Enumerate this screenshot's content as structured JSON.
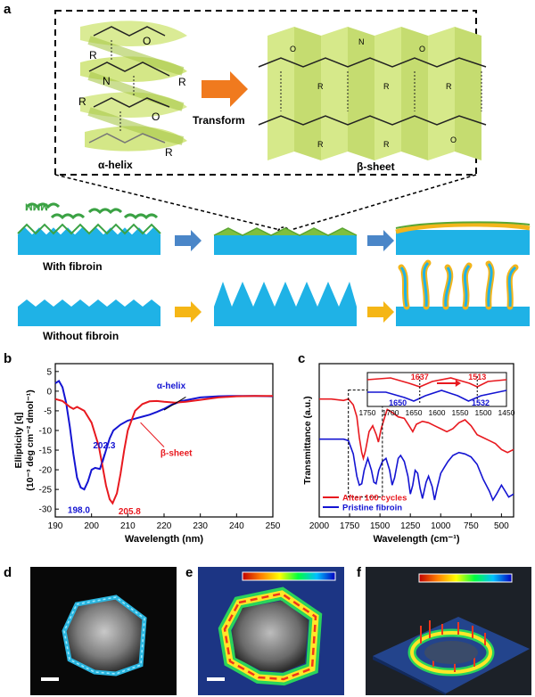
{
  "panels": {
    "a": {
      "label": "a",
      "alpha_helix": "α-helix",
      "beta_sheet": "β-sheet",
      "transform": "Transform",
      "with_fibroin": "With  fibroin",
      "without_fibroin": "Without fibroin"
    },
    "b": {
      "label": "b"
    },
    "c": {
      "label": "c"
    },
    "d": {
      "label": "d"
    },
    "e": {
      "label": "e"
    },
    "f": {
      "label": "f"
    }
  },
  "colors": {
    "red": "#e8191f",
    "blue": "#1414d2",
    "green_light": "#d6e98a",
    "substrate": "#1fb2e6",
    "arrow_blue": "#4a86c8",
    "arrow_yellow": "#f5b616",
    "arrow_orange": "#f07a1e",
    "coat_yellow": "#f2b51c"
  },
  "chart_data": [
    {
      "type": "line",
      "panel": "b",
      "xlabel": "Wavelength (nm)",
      "ylabel": "Ellipticity [q]",
      "ylabel2": "(10⁻³ deg cm⁻² dmol⁻¹)",
      "xlim": [
        190,
        250
      ],
      "ylim": [
        -32,
        7
      ],
      "x_ticks": [
        190,
        200,
        210,
        220,
        230,
        240,
        250
      ],
      "y_ticks": [
        5,
        0,
        -5,
        -10,
        -15,
        -20,
        -25,
        -30
      ],
      "series": [
        {
          "name": "α-helix",
          "color": "#1414d2",
          "x": [
            190,
            191,
            192,
            193,
            194,
            195,
            196,
            197,
            198,
            199,
            200,
            201,
            202.3,
            203,
            204,
            205,
            206,
            208,
            210,
            212,
            214,
            216,
            218,
            220,
            222,
            225,
            230,
            235,
            240,
            245,
            250
          ],
          "y": [
            2,
            2.6,
            1,
            -3,
            -9,
            -16,
            -22,
            -24.5,
            -25,
            -23,
            -20,
            -19.5,
            -19.8,
            -18,
            -15,
            -12,
            -10,
            -8.5,
            -7.5,
            -7,
            -6.5,
            -6,
            -5.3,
            -4.5,
            -3.5,
            -2.5,
            -1.6,
            -1.3,
            -1.2,
            -1.2,
            -1.3
          ]
        },
        {
          "name": "β-sheet",
          "color": "#e8191f",
          "x": [
            190,
            192,
            194,
            195,
            196,
            198,
            200,
            202,
            203,
            204,
            205,
            205.8,
            207,
            208,
            209,
            210,
            212,
            214,
            216,
            218,
            220,
            223,
            226,
            230,
            235,
            240,
            245,
            250
          ],
          "y": [
            -2,
            -2.5,
            -4,
            -4.5,
            -4,
            -5,
            -8,
            -14,
            -19,
            -24,
            -27.5,
            -28.5,
            -26,
            -21,
            -15,
            -10,
            -5,
            -3.3,
            -2.6,
            -2.5,
            -2.7,
            -2.9,
            -2.7,
            -2.2,
            -1.6,
            -1.3,
            -1.2,
            -1.2
          ]
        }
      ],
      "annotations": [
        "198.0",
        "202.3",
        "205.8",
        "α-helix",
        "β-sheet"
      ]
    },
    {
      "type": "line",
      "panel": "c",
      "xlabel": "Wavelength  (cm⁻¹)",
      "ylabel": "Transmittance  (a.u.)",
      "xlim": [
        2000,
        400
      ],
      "x_ticks": [
        2000,
        1750,
        1500,
        1250,
        1000,
        750,
        500
      ],
      "series": [
        {
          "name": "After  100  cycles",
          "color": "#e8191f",
          "x": [
            2000,
            1900,
            1800,
            1760,
            1720,
            1690,
            1670,
            1650,
            1637,
            1620,
            1590,
            1560,
            1530,
            1513,
            1490,
            1460,
            1440,
            1400,
            1350,
            1300,
            1260,
            1230,
            1200,
            1150,
            1100,
            1050,
            1000,
            950,
            900,
            850,
            800,
            750,
            700,
            650,
            600,
            550,
            500,
            450,
            400
          ],
          "y": [
            0.62,
            0.62,
            0.61,
            0.62,
            0.58,
            0.5,
            0.36,
            0.26,
            0.22,
            0.27,
            0.4,
            0.44,
            0.38,
            0.33,
            0.42,
            0.5,
            0.55,
            0.53,
            0.5,
            0.49,
            0.44,
            0.4,
            0.45,
            0.47,
            0.46,
            0.44,
            0.42,
            0.4,
            0.42,
            0.46,
            0.48,
            0.44,
            0.38,
            0.36,
            0.34,
            0.32,
            0.28,
            0.26,
            0.28
          ]
        },
        {
          "name": "Pristine  fibroin",
          "color": "#1414d2",
          "x": [
            2000,
            1900,
            1800,
            1760,
            1720,
            1690,
            1670,
            1650,
            1630,
            1600,
            1570,
            1550,
            1532,
            1510,
            1480,
            1450,
            1420,
            1400,
            1380,
            1350,
            1330,
            1300,
            1270,
            1250,
            1230,
            1210,
            1190,
            1170,
            1150,
            1120,
            1100,
            1070,
            1050,
            1030,
            1000,
            970,
            940,
            900,
            850,
            800,
            750,
            700,
            650,
            600,
            570,
            540,
            500,
            470,
            440,
            400
          ],
          "y": [
            0.35,
            0.35,
            0.35,
            0.34,
            0.25,
            0.1,
            0.04,
            0.05,
            0.14,
            0.22,
            0.14,
            0.06,
            0.05,
            0.14,
            0.2,
            0.22,
            0.14,
            0.04,
            0.09,
            0.22,
            0.24,
            0.2,
            0.1,
            -0.02,
            0.04,
            0.14,
            0.12,
            0.02,
            -0.05,
            0.06,
            0.1,
            0.03,
            -0.06,
            0.02,
            0.12,
            0.16,
            0.2,
            0.24,
            0.26,
            0.25,
            0.23,
            0.18,
            0.08,
            0.0,
            -0.06,
            -0.02,
            0.04,
            0.0,
            -0.04,
            -0.02
          ]
        }
      ],
      "inset": {
        "x_ticks": [
          1750,
          1700,
          1650,
          1600,
          1550,
          1500,
          1450
        ],
        "labels_red": [
          "1637",
          "1513"
        ],
        "labels_blue": [
          "1650",
          "1532"
        ]
      }
    }
  ],
  "image_panels": {
    "scale_bar": "scale bar"
  }
}
